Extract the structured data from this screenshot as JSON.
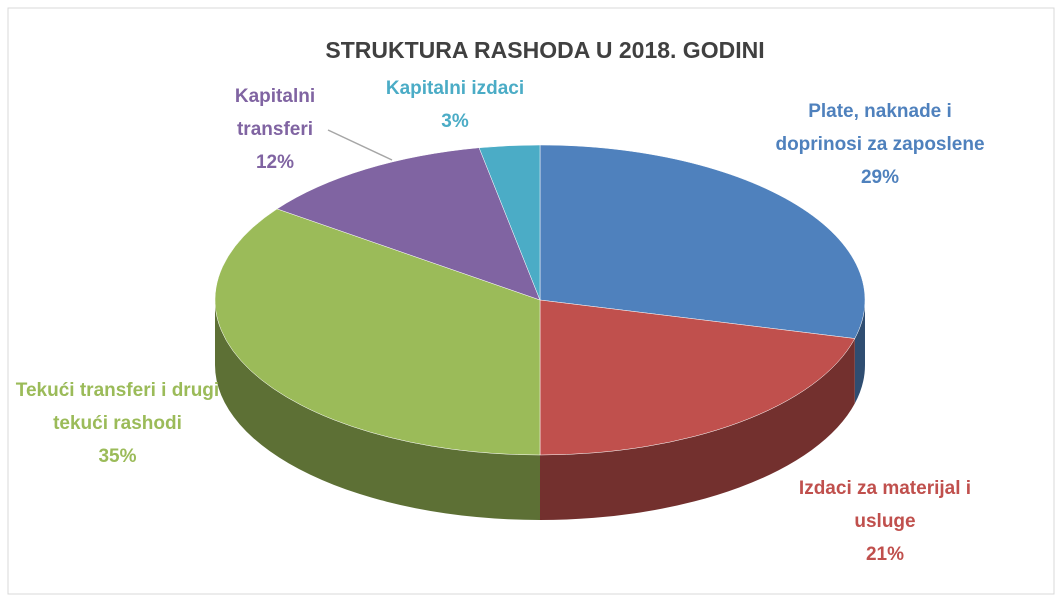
{
  "chart_data": {
    "type": "pie",
    "title": "STRUKTURA RASHODA U 2018. GODINI",
    "categories": [
      "Plate, naknade i doprinosi za zaposlene",
      "Izdaci za materijal i usluge",
      "Tekući transferi i drugi tekući rashodi",
      "Kapitalni transferi",
      "Kapitalni izdaci"
    ],
    "values": [
      29,
      21,
      35,
      12,
      3
    ],
    "value_labels": [
      "29%",
      "21%",
      "35%",
      "12%",
      "3%"
    ],
    "colors": [
      "#4f81bd",
      "#c0504d",
      "#9bbb59",
      "#8064a2",
      "#4bacc6"
    ]
  }
}
